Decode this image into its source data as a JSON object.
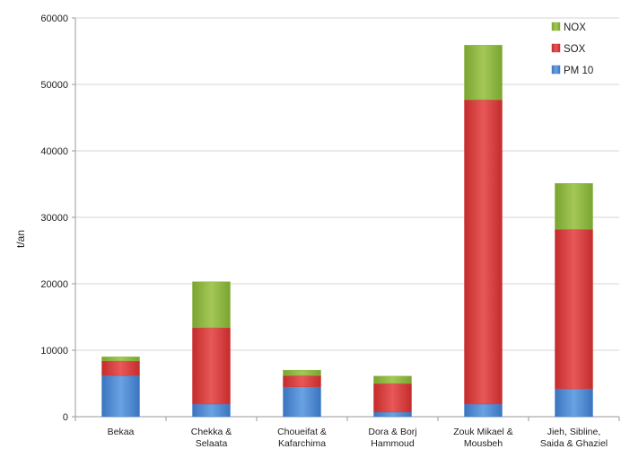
{
  "chart_data": {
    "type": "bar",
    "stacked": true,
    "title": "",
    "xlabel": "",
    "ylabel": "t/an",
    "ylim": [
      0,
      60000
    ],
    "yticks": [
      0,
      10000,
      20000,
      30000,
      40000,
      50000,
      60000
    ],
    "grid": true,
    "legend_position": "top-right",
    "categories": [
      [
        "Bekaa"
      ],
      [
        "Chekka &",
        "Selaata"
      ],
      [
        "Choueifat &",
        "Kafarchima"
      ],
      [
        "Dora & Borj",
        "Hammoud"
      ],
      [
        "Zouk Mikael &",
        "Mousbeh"
      ],
      [
        "Jieh, Sibline,",
        "Saida & Ghaziel"
      ]
    ],
    "series": [
      {
        "name": "PM 10",
        "color": "#4a86cf",
        "values": [
          6200,
          1900,
          4500,
          700,
          1900,
          4200
        ]
      },
      {
        "name": "SOX",
        "color": "#d23a3a",
        "values": [
          2200,
          11500,
          1700,
          4300,
          45800,
          24000
        ]
      },
      {
        "name": "NOX",
        "color": "#8cb43c",
        "values": [
          600,
          6900,
          800,
          1100,
          8200,
          6900
        ]
      }
    ]
  }
}
